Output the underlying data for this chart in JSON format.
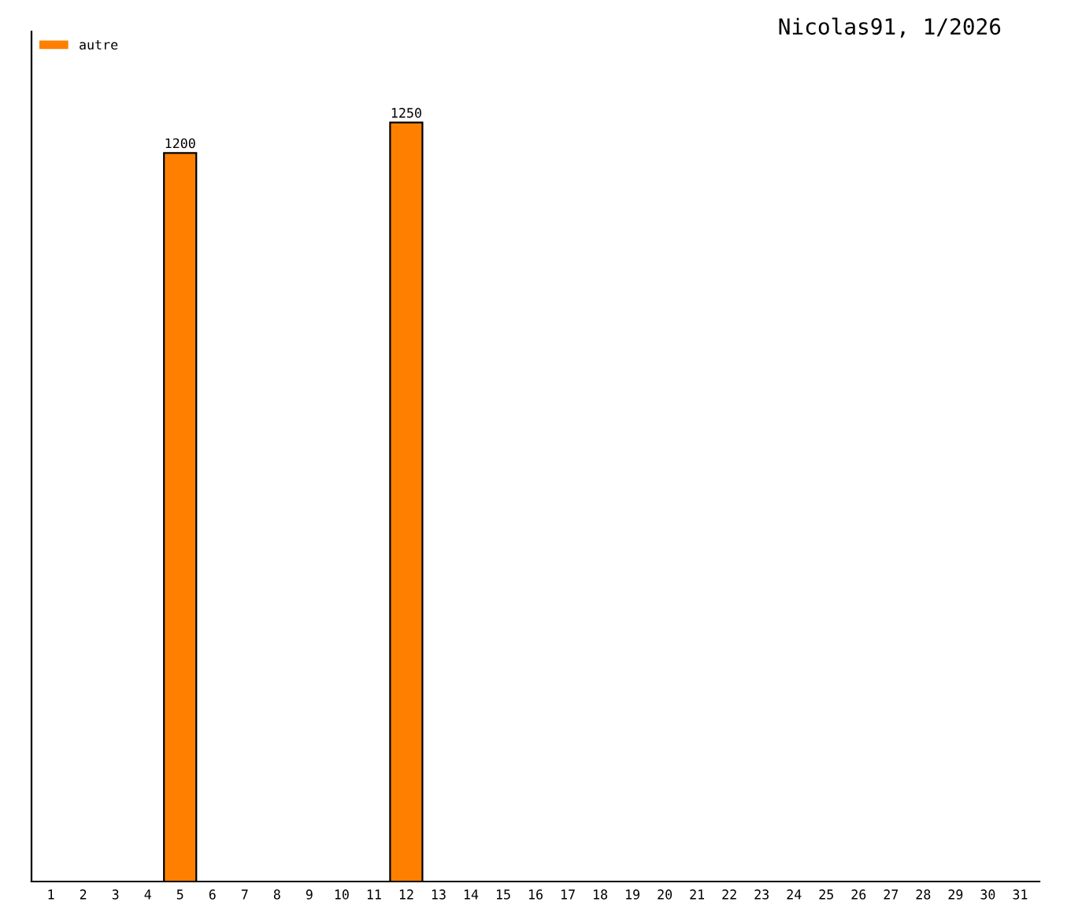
{
  "chart_data": {
    "type": "bar",
    "title": "Nicolas91, 1/2026",
    "categories": [
      "1",
      "2",
      "3",
      "4",
      "5",
      "6",
      "7",
      "8",
      "9",
      "10",
      "11",
      "12",
      "13",
      "14",
      "15",
      "16",
      "17",
      "18",
      "19",
      "20",
      "21",
      "22",
      "23",
      "24",
      "25",
      "26",
      "27",
      "28",
      "29",
      "30",
      "31"
    ],
    "series": [
      {
        "name": "autre",
        "color": "#ff8000",
        "values": [
          null,
          null,
          null,
          null,
          1200,
          null,
          null,
          null,
          null,
          null,
          null,
          1250,
          null,
          null,
          null,
          null,
          null,
          null,
          null,
          null,
          null,
          null,
          null,
          null,
          null,
          null,
          null,
          null,
          null,
          null,
          null
        ]
      }
    ],
    "ylim": [
      0,
      1400
    ],
    "data_labels": true,
    "legend": "top left",
    "grid": false,
    "tick_labels": "x"
  }
}
